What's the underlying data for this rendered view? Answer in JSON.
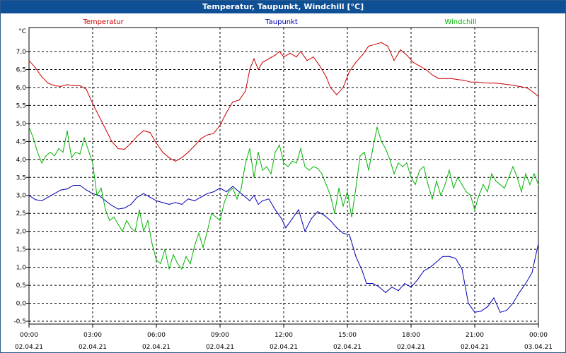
{
  "window": {
    "title": "Temperatur, Taupunkt, Windchill [°C]"
  },
  "chart_data": {
    "type": "line",
    "title": "Temperatur, Taupunkt, Windchill [°C]",
    "ylabel": "°C",
    "ylim": [
      -0.5,
      7.5
    ],
    "xlim_hours": [
      0,
      24
    ],
    "yticks": [
      7.0,
      6.5,
      6.0,
      5.5,
      5.0,
      4.5,
      4.0,
      3.5,
      3.0,
      2.5,
      2.0,
      1.5,
      1.0,
      0.5,
      0.0,
      -0.5
    ],
    "ytick_labels": [
      "7,0",
      "6,5",
      "6,0",
      "5,5",
      "5,0",
      "4,5",
      "4,0",
      "3,5",
      "3,0",
      "2,5",
      "2,0",
      "1,5",
      "1,0",
      "0,5",
      "0,0",
      "-0,5"
    ],
    "xticks": [
      {
        "h": 0,
        "time": "00:00",
        "date": "02.04.21"
      },
      {
        "h": 3,
        "time": "03:00",
        "date": "02.04.21"
      },
      {
        "h": 6,
        "time": "06:00",
        "date": "02.04.21"
      },
      {
        "h": 9,
        "time": "09:00",
        "date": "02.04.21"
      },
      {
        "h": 12,
        "time": "12:00",
        "date": "02.04.21"
      },
      {
        "h": 15,
        "time": "15:00",
        "date": "02.04.21"
      },
      {
        "h": 18,
        "time": "18:00",
        "date": "02.04.21"
      },
      {
        "h": 21,
        "time": "21:00",
        "date": "02.04.21"
      },
      {
        "h": 24,
        "time": "00:00",
        "date": "03.04.21"
      }
    ],
    "grid": true,
    "series": [
      {
        "name": "Temperatur",
        "color": "#cc0000",
        "points": [
          [
            0,
            6.75
          ],
          [
            0.3,
            6.55
          ],
          [
            0.6,
            6.3
          ],
          [
            0.9,
            6.12
          ],
          [
            1.2,
            6.05
          ],
          [
            1.5,
            6.03
          ],
          [
            1.8,
            6.08
          ],
          [
            2.1,
            6.05
          ],
          [
            2.4,
            6.05
          ],
          [
            2.7,
            5.95
          ],
          [
            3.0,
            5.55
          ],
          [
            3.3,
            5.2
          ],
          [
            3.6,
            4.85
          ],
          [
            3.9,
            4.5
          ],
          [
            4.2,
            4.3
          ],
          [
            4.5,
            4.28
          ],
          [
            4.8,
            4.45
          ],
          [
            5.1,
            4.65
          ],
          [
            5.4,
            4.8
          ],
          [
            5.7,
            4.75
          ],
          [
            6.0,
            4.45
          ],
          [
            6.3,
            4.2
          ],
          [
            6.6,
            4.05
          ],
          [
            6.9,
            3.95
          ],
          [
            7.2,
            4.05
          ],
          [
            7.5,
            4.2
          ],
          [
            7.8,
            4.38
          ],
          [
            8.1,
            4.58
          ],
          [
            8.4,
            4.68
          ],
          [
            8.7,
            4.72
          ],
          [
            9.0,
            4.95
          ],
          [
            9.3,
            5.3
          ],
          [
            9.6,
            5.6
          ],
          [
            9.9,
            5.65
          ],
          [
            10.2,
            5.9
          ],
          [
            10.4,
            6.5
          ],
          [
            10.6,
            6.8
          ],
          [
            10.8,
            6.5
          ],
          [
            11.0,
            6.7
          ],
          [
            11.3,
            6.8
          ],
          [
            11.6,
            6.9
          ],
          [
            11.8,
            7.0
          ],
          [
            12.0,
            6.85
          ],
          [
            12.3,
            6.95
          ],
          [
            12.6,
            6.85
          ],
          [
            12.8,
            7.0
          ],
          [
            13.1,
            6.75
          ],
          [
            13.4,
            6.85
          ],
          [
            13.7,
            6.6
          ],
          [
            14.0,
            6.3
          ],
          [
            14.2,
            6.0
          ],
          [
            14.5,
            5.8
          ],
          [
            14.8,
            6.0
          ],
          [
            15.1,
            6.45
          ],
          [
            15.4,
            6.7
          ],
          [
            15.7,
            6.9
          ],
          [
            16.0,
            7.15
          ],
          [
            16.3,
            7.2
          ],
          [
            16.6,
            7.25
          ],
          [
            16.9,
            7.15
          ],
          [
            17.2,
            6.75
          ],
          [
            17.5,
            7.05
          ],
          [
            17.8,
            6.9
          ],
          [
            18.1,
            6.7
          ],
          [
            18.4,
            6.6
          ],
          [
            18.7,
            6.5
          ],
          [
            19.0,
            6.35
          ],
          [
            19.3,
            6.25
          ],
          [
            19.6,
            6.25
          ],
          [
            19.9,
            6.25
          ],
          [
            20.2,
            6.22
          ],
          [
            20.5,
            6.2
          ],
          [
            20.8,
            6.15
          ],
          [
            21.1,
            6.15
          ],
          [
            21.4,
            6.13
          ],
          [
            21.7,
            6.12
          ],
          [
            22.0,
            6.12
          ],
          [
            22.3,
            6.1
          ],
          [
            22.6,
            6.08
          ],
          [
            22.9,
            6.05
          ],
          [
            23.2,
            6.02
          ],
          [
            23.5,
            5.98
          ],
          [
            23.8,
            5.85
          ],
          [
            24.0,
            5.75
          ]
        ]
      },
      {
        "name": "Taupunkt",
        "color": "#0000b4",
        "points": [
          [
            0,
            3.0
          ],
          [
            0.3,
            2.88
          ],
          [
            0.6,
            2.85
          ],
          [
            0.9,
            2.95
          ],
          [
            1.2,
            3.05
          ],
          [
            1.5,
            3.15
          ],
          [
            1.8,
            3.18
          ],
          [
            2.1,
            3.28
          ],
          [
            2.4,
            3.28
          ],
          [
            2.7,
            3.15
          ],
          [
            3.0,
            3.05
          ],
          [
            3.3,
            3.0
          ],
          [
            3.6,
            2.85
          ],
          [
            3.9,
            2.72
          ],
          [
            4.2,
            2.62
          ],
          [
            4.5,
            2.65
          ],
          [
            4.8,
            2.75
          ],
          [
            5.1,
            2.95
          ],
          [
            5.4,
            3.05
          ],
          [
            5.7,
            2.95
          ],
          [
            6.0,
            2.85
          ],
          [
            6.3,
            2.8
          ],
          [
            6.6,
            2.75
          ],
          [
            6.9,
            2.8
          ],
          [
            7.2,
            2.75
          ],
          [
            7.5,
            2.9
          ],
          [
            7.8,
            2.85
          ],
          [
            8.1,
            2.95
          ],
          [
            8.4,
            3.05
          ],
          [
            8.7,
            3.1
          ],
          [
            9.0,
            3.2
          ],
          [
            9.3,
            3.1
          ],
          [
            9.6,
            3.25
          ],
          [
            9.9,
            3.1
          ],
          [
            10.2,
            2.95
          ],
          [
            10.4,
            2.85
          ],
          [
            10.6,
            3.0
          ],
          [
            10.8,
            2.75
          ],
          [
            11.0,
            2.85
          ],
          [
            11.3,
            2.9
          ],
          [
            11.6,
            2.6
          ],
          [
            11.9,
            2.35
          ],
          [
            12.1,
            2.1
          ],
          [
            12.4,
            2.35
          ],
          [
            12.7,
            2.6
          ],
          [
            13.0,
            2.0
          ],
          [
            13.3,
            2.35
          ],
          [
            13.6,
            2.55
          ],
          [
            13.9,
            2.45
          ],
          [
            14.2,
            2.3
          ],
          [
            14.5,
            2.1
          ],
          [
            14.8,
            1.95
          ],
          [
            15.1,
            1.9
          ],
          [
            15.4,
            1.3
          ],
          [
            15.7,
            0.9
          ],
          [
            15.9,
            0.55
          ],
          [
            16.2,
            0.55
          ],
          [
            16.5,
            0.45
          ],
          [
            16.8,
            0.3
          ],
          [
            17.1,
            0.45
          ],
          [
            17.4,
            0.35
          ],
          [
            17.7,
            0.55
          ],
          [
            18.0,
            0.45
          ],
          [
            18.3,
            0.65
          ],
          [
            18.6,
            0.9
          ],
          [
            18.9,
            1.0
          ],
          [
            19.2,
            1.15
          ],
          [
            19.5,
            1.3
          ],
          [
            19.8,
            1.3
          ],
          [
            20.1,
            1.25
          ],
          [
            20.4,
            0.95
          ],
          [
            20.7,
            0.0
          ],
          [
            21.0,
            -0.25
          ],
          [
            21.3,
            -0.22
          ],
          [
            21.6,
            -0.1
          ],
          [
            21.9,
            0.15
          ],
          [
            22.2,
            -0.25
          ],
          [
            22.5,
            -0.2
          ],
          [
            22.8,
            0.0
          ],
          [
            23.1,
            0.3
          ],
          [
            23.4,
            0.55
          ],
          [
            23.7,
            0.85
          ],
          [
            23.9,
            1.4
          ],
          [
            24.0,
            1.65
          ]
        ]
      },
      {
        "name": "Windchill",
        "color": "#00b400",
        "points": [
          [
            0,
            4.9
          ],
          [
            0.2,
            4.6
          ],
          [
            0.4,
            4.2
          ],
          [
            0.6,
            3.9
          ],
          [
            0.8,
            4.1
          ],
          [
            1.0,
            4.2
          ],
          [
            1.2,
            4.1
          ],
          [
            1.4,
            4.3
          ],
          [
            1.6,
            4.2
          ],
          [
            1.8,
            4.8
          ],
          [
            2.0,
            4.05
          ],
          [
            2.2,
            4.2
          ],
          [
            2.4,
            4.15
          ],
          [
            2.6,
            4.6
          ],
          [
            2.8,
            4.25
          ],
          [
            3.0,
            3.9
          ],
          [
            3.2,
            3.0
          ],
          [
            3.4,
            3.2
          ],
          [
            3.6,
            2.6
          ],
          [
            3.8,
            2.3
          ],
          [
            4.0,
            2.4
          ],
          [
            4.2,
            2.2
          ],
          [
            4.4,
            2.0
          ],
          [
            4.6,
            2.3
          ],
          [
            4.8,
            2.1
          ],
          [
            5.0,
            2.0
          ],
          [
            5.2,
            2.6
          ],
          [
            5.4,
            2.0
          ],
          [
            5.6,
            2.3
          ],
          [
            5.8,
            1.65
          ],
          [
            6.0,
            1.2
          ],
          [
            6.2,
            1.1
          ],
          [
            6.4,
            1.5
          ],
          [
            6.6,
            0.95
          ],
          [
            6.8,
            1.35
          ],
          [
            7.0,
            1.1
          ],
          [
            7.2,
            0.95
          ],
          [
            7.4,
            1.3
          ],
          [
            7.6,
            1.1
          ],
          [
            7.8,
            1.6
          ],
          [
            8.0,
            1.95
          ],
          [
            8.2,
            1.55
          ],
          [
            8.4,
            2.0
          ],
          [
            8.6,
            2.5
          ],
          [
            8.8,
            2.4
          ],
          [
            9.0,
            2.3
          ],
          [
            9.2,
            2.8
          ],
          [
            9.4,
            3.1
          ],
          [
            9.6,
            3.2
          ],
          [
            9.8,
            2.9
          ],
          [
            10.0,
            3.2
          ],
          [
            10.2,
            3.9
          ],
          [
            10.4,
            4.3
          ],
          [
            10.6,
            3.5
          ],
          [
            10.8,
            4.2
          ],
          [
            11.0,
            3.7
          ],
          [
            11.2,
            3.8
          ],
          [
            11.4,
            3.6
          ],
          [
            11.6,
            4.2
          ],
          [
            11.8,
            4.4
          ],
          [
            12.0,
            3.9
          ],
          [
            12.2,
            3.8
          ],
          [
            12.4,
            3.95
          ],
          [
            12.6,
            3.9
          ],
          [
            12.8,
            4.3
          ],
          [
            13.0,
            3.8
          ],
          [
            13.2,
            3.7
          ],
          [
            13.4,
            3.8
          ],
          [
            13.6,
            3.75
          ],
          [
            13.8,
            3.6
          ],
          [
            14.0,
            3.3
          ],
          [
            14.2,
            3.0
          ],
          [
            14.4,
            2.5
          ],
          [
            14.6,
            3.2
          ],
          [
            14.8,
            2.7
          ],
          [
            15.0,
            3.1
          ],
          [
            15.2,
            2.4
          ],
          [
            15.4,
            3.2
          ],
          [
            15.6,
            4.1
          ],
          [
            15.8,
            4.2
          ],
          [
            16.0,
            3.7
          ],
          [
            16.2,
            4.3
          ],
          [
            16.4,
            4.9
          ],
          [
            16.6,
            4.5
          ],
          [
            16.8,
            4.3
          ],
          [
            17.0,
            4.0
          ],
          [
            17.2,
            3.6
          ],
          [
            17.4,
            3.9
          ],
          [
            17.6,
            3.8
          ],
          [
            17.8,
            3.9
          ],
          [
            18.0,
            3.5
          ],
          [
            18.2,
            3.3
          ],
          [
            18.4,
            3.7
          ],
          [
            18.6,
            3.8
          ],
          [
            18.8,
            3.3
          ],
          [
            19.0,
            2.9
          ],
          [
            19.2,
            3.4
          ],
          [
            19.4,
            3.0
          ],
          [
            19.6,
            3.3
          ],
          [
            19.8,
            3.7
          ],
          [
            20.0,
            3.2
          ],
          [
            20.2,
            3.5
          ],
          [
            20.4,
            3.3
          ],
          [
            20.6,
            3.1
          ],
          [
            20.8,
            3.0
          ],
          [
            21.0,
            2.6
          ],
          [
            21.2,
            3.0
          ],
          [
            21.4,
            3.3
          ],
          [
            21.6,
            3.1
          ],
          [
            21.8,
            3.6
          ],
          [
            22.0,
            3.4
          ],
          [
            22.2,
            3.3
          ],
          [
            22.4,
            3.2
          ],
          [
            22.6,
            3.5
          ],
          [
            22.8,
            3.8
          ],
          [
            23.0,
            3.5
          ],
          [
            23.2,
            3.1
          ],
          [
            23.4,
            3.6
          ],
          [
            23.6,
            3.3
          ],
          [
            23.8,
            3.6
          ],
          [
            24.0,
            3.3
          ]
        ]
      }
    ]
  }
}
